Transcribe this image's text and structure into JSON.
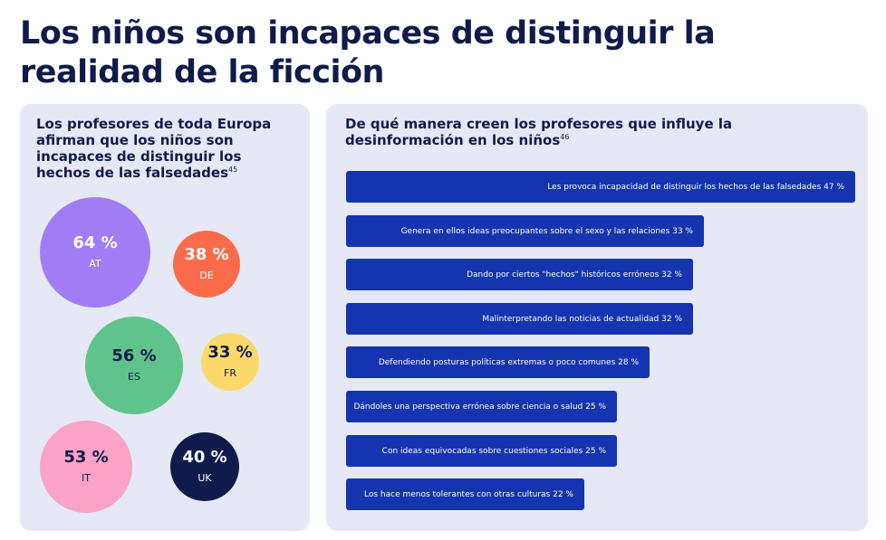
{
  "page": {
    "title": "Los niños son incapaces de distinguir la realidad de la ficción"
  },
  "left_panel": {
    "heading": "Los profesores de toda Europa afirman que los niños son incapaces de distinguir los hechos de las falsedades",
    "footnote": "45"
  },
  "right_panel": {
    "heading": "De qué manera creen los profesores que influye la desinformación en los niños",
    "footnote": "46"
  },
  "colors": {
    "title": "#0f1b4a",
    "panel_bg": "#e6e9f5",
    "bar": "#1434b0"
  },
  "chart_data": [
    {
      "type": "bubble",
      "title": "Los profesores de toda Europa afirman que los niños son incapaces de distinguir los hechos de las falsedades",
      "points": [
        {
          "country": "AT",
          "value": 64,
          "label": "64 %",
          "color": "#a07df5",
          "text_color": "#ffffff"
        },
        {
          "country": "DE",
          "value": 38,
          "label": "38 %",
          "color": "#fb6b4a",
          "text_color": "#ffffff"
        },
        {
          "country": "ES",
          "value": 56,
          "label": "56 %",
          "color": "#5fc48c",
          "text_color": "#0f1b4a"
        },
        {
          "country": "FR",
          "value": 33,
          "label": "33 %",
          "color": "#fcd96a",
          "text_color": "#0f1b4a"
        },
        {
          "country": "IT",
          "value": 53,
          "label": "53 %",
          "color": "#f9a3c6",
          "text_color": "#0f1b4a"
        },
        {
          "country": "UK",
          "value": 40,
          "label": "40 %",
          "color": "#0f1b4a",
          "text_color": "#ffffff"
        }
      ]
    },
    {
      "type": "bar",
      "orientation": "horizontal",
      "title": "De qué manera creen los profesores que influye la desinformación en los niños",
      "xlim": [
        0,
        47
      ],
      "categories": [
        "Les provoca incapacidad de distinguir los hechos de las falsedades",
        "Genera en ellos ideas preocupantes sobre el sexo y las relaciones",
        "Dando por ciertos \"hechos\" históricos erróneos",
        "Malinterpretando las noticias de actualidad",
        "Defendiendo posturas políticas extremas o poco comunes",
        "Dándoles una perspectiva errónea sobre ciencia o salud",
        "Con ideas equivocadas sobre cuestiones sociales",
        "Los hace menos tolerantes con otras culturas"
      ],
      "values": [
        47,
        33,
        32,
        32,
        28,
        25,
        25,
        22
      ],
      "labels": [
        "Les provoca incapacidad de distinguir los hechos de las falsedades 47 %",
        "Genera en ellos ideas preocupantes sobre el sexo y las relaciones 33 %",
        "Dando por ciertos \"hechos\" históricos erróneos 32 %",
        "Malinterpretando las noticias de actualidad 32 %",
        "Defendiendo posturas políticas extremas o poco comunes 28 %",
        "Dándoles una perspectiva errónea sobre ciencia o salud 25 %",
        "Con ideas equivocadas sobre cuestiones sociales 25 %",
        "Los hace menos tolerantes con otras culturas 22 %"
      ]
    }
  ]
}
